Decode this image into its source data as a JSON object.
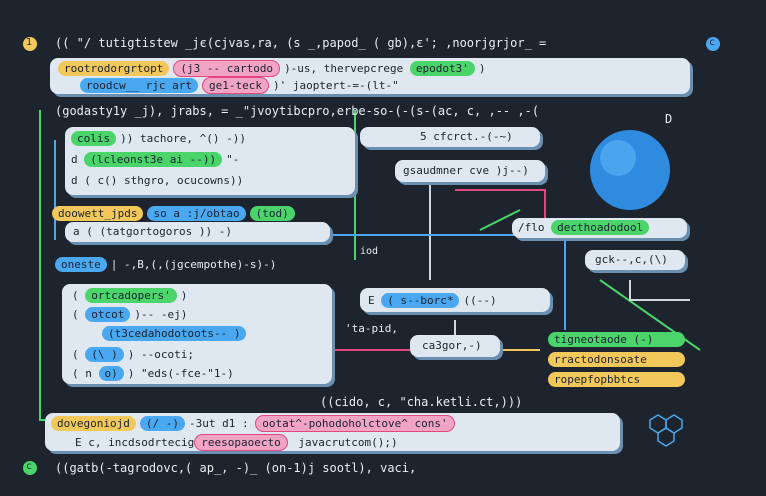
{
  "header": {
    "marker": "1",
    "line": "(( \"/ tutigtistew _jє(cjvas,ra, (s _,papod_ ( gb),ε'; ,noorjgrjor_ =",
    "badge": "c"
  },
  "top_box": {
    "line1": [
      "rootrodorgrtopt",
      "(j3 -- cartodo",
      ")-us, thervepcrege",
      "epodot3'",
      ")"
    ],
    "line2": [
      "roodcw__ rjc art",
      "ge1-teck",
      ")' jaoptert-=-(lt-\""
    ]
  },
  "mid_line": "(godasty1y _j),  jrabs, = _\"jvoytibcpro,erbe-so-(-(s-(ac, c, ,-- ,-(",
  "left_box": {
    "rows": [
      [
        "colis",
        ")) tachore, ^() -))"
      ],
      [
        "d",
        "(lcleonst3e ai --))",
        "\"-"
      ],
      [
        "d",
        "(  c() sthgro, ocucowns))"
      ]
    ]
  },
  "pill_row": [
    "doowett_jpds",
    "so a :j/obtao",
    "(tod)"
  ],
  "sub_box": "a (  (tatgortogoros  ))   -)",
  "oneste": [
    "oneste",
    "| -,B,(,(jgcempothe)-s)-)"
  ],
  "big_box": {
    "rows": [
      [
        "(",
        "ortcadopers'",
        ")"
      ],
      [
        "( ",
        "otcot",
        ")--  -ej)"
      ],
      [
        "(t3cedahodotoots-- )"
      ],
      [
        "( ",
        "(\\ )",
        ") --ocoti;"
      ],
      [
        "( n ",
        "o)",
        ") \"eds(-fce-\"1-)"
      ]
    ]
  },
  "center": {
    "box1": "5 cfcrct.-(-~)",
    "box2": "gsaudmner cve )j--)",
    "box3": [
      "E",
      "( s--borc*",
      "((--)"
    ],
    "box4": "ca3gor,-)",
    "note": "'ta-pid,",
    "label": "iod"
  },
  "right": {
    "flo": [
      "/flo",
      "decthoadodool"
    ],
    "gck": "gck--,c,(\\)",
    "pills": [
      "tigneotaode (-)",
      "rractodonsoate",
      "ropepfopbbtcs"
    ],
    "d": "D"
  },
  "call_line": "((cido, c, \"cha.ketli.ct,)))",
  "bottom_box": {
    "line1": [
      "dovegoniojd",
      "(/ -)",
      "-3ut d1 :",
      "ootat^-pohodoholctove^ cons'"
    ],
    "line2": [
      "E c, incdsodrtecig",
      "reesopaoecto",
      " javacrutcom();)"
    ]
  },
  "footer": {
    "marker": "c",
    "line": "((gatb(-tagrodovc,( ap_, -)_ (on-1)j         sootl), vaci,"
  }
}
